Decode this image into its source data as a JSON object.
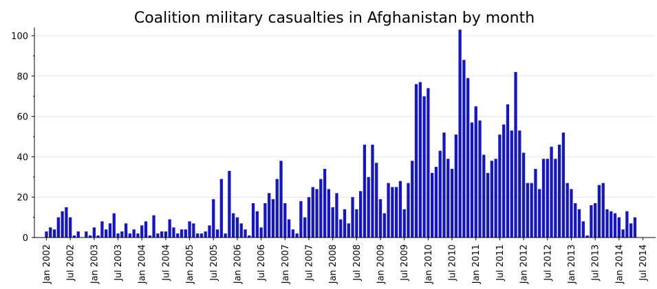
{
  "chart_data": {
    "type": "bar",
    "title": "Coalition military casualties in Afghanistan by month",
    "xlabel": "",
    "ylabel": "",
    "ylim": [
      0,
      105
    ],
    "y_ticks": [
      0,
      20,
      40,
      60,
      80,
      100
    ],
    "x_ticks": [
      "Jan 2002",
      "Jul 2002",
      "Jan 2003",
      "Jul 2003",
      "Jan 2004",
      "Jul 2004",
      "Jan 2005",
      "Jul 2005",
      "Jan 2006",
      "Jul 2006",
      "Jan 2007",
      "Jul 2007",
      "Jan 2008",
      "Jul 2008",
      "Jan 2009",
      "Jul 2009",
      "Jan 2010",
      "Jul 2010",
      "Jan 2011",
      "Jul 2011",
      "Jan 2012",
      "Jul 2012",
      "Jan 2013",
      "Jul 2013",
      "Jan 2014",
      "Jul 2014"
    ],
    "x_range": [
      "2002-01",
      "2014-12"
    ],
    "start_month": "2002-01",
    "grid": true,
    "bar_color": "#1515c8",
    "values": [
      3,
      5,
      4,
      10,
      13,
      15,
      10,
      1,
      3,
      0,
      3,
      1,
      5,
      1,
      8,
      4,
      7,
      12,
      2,
      3,
      7,
      2,
      4,
      2,
      6,
      8,
      1,
      11,
      2,
      3,
      3,
      9,
      5,
      2,
      4,
      4,
      8,
      7,
      2,
      2,
      3,
      6,
      19,
      4,
      29,
      2,
      33,
      12,
      10,
      7,
      4,
      1,
      17,
      13,
      5,
      17,
      22,
      19,
      29,
      38,
      17,
      9,
      4,
      2,
      18,
      10,
      20,
      25,
      24,
      29,
      34,
      24,
      15,
      22,
      9,
      14,
      7,
      20,
      14,
      23,
      46,
      30,
      46,
      37,
      19,
      12,
      27,
      25,
      25,
      28,
      14,
      27,
      38,
      76,
      77,
      70,
      74,
      32,
      35,
      43,
      52,
      39,
      34,
      51,
      103,
      88,
      79,
      57,
      65,
      58,
      41,
      32,
      38,
      39,
      51,
      56,
      66,
      53,
      82,
      53,
      42,
      27,
      27,
      34,
      24,
      39,
      39,
      45,
      39,
      46,
      52,
      27,
      24,
      17,
      14,
      8,
      1,
      16,
      17,
      26,
      27,
      14,
      13,
      12,
      10,
      4,
      13,
      7,
      10
    ]
  }
}
